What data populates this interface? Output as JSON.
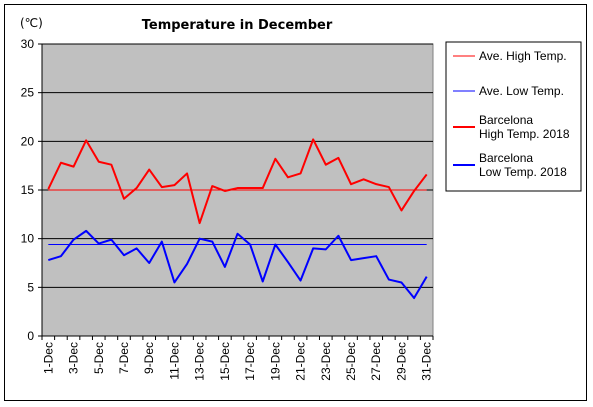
{
  "chart_data": {
    "type": "line",
    "title": "Temperature in December",
    "ylabel": "(℃)",
    "xlabel": "",
    "ylim": [
      0,
      30
    ],
    "yticks": [
      0,
      5,
      10,
      15,
      20,
      25,
      30
    ],
    "grid": true,
    "legend_position": "right",
    "categories": [
      "1-Dec",
      "2-Dec",
      "3-Dec",
      "4-Dec",
      "5-Dec",
      "6-Dec",
      "7-Dec",
      "8-Dec",
      "9-Dec",
      "10-Dec",
      "11-Dec",
      "12-Dec",
      "13-Dec",
      "14-Dec",
      "15-Dec",
      "16-Dec",
      "17-Dec",
      "18-Dec",
      "19-Dec",
      "20-Dec",
      "21-Dec",
      "22-Dec",
      "23-Dec",
      "24-Dec",
      "25-Dec",
      "26-Dec",
      "27-Dec",
      "28-Dec",
      "29-Dec",
      "30-Dec",
      "31-Dec"
    ],
    "tick_labels": [
      "1-Dec",
      "3-Dec",
      "5-Dec",
      "7-Dec",
      "9-Dec",
      "11-Dec",
      "13-Dec",
      "15-Dec",
      "17-Dec",
      "19-Dec",
      "21-Dec",
      "23-Dec",
      "25-Dec",
      "27-Dec",
      "29-Dec",
      "31-Dec"
    ],
    "series": [
      {
        "name": "Ave. High Temp.",
        "color": "#ff0000",
        "style": "thin",
        "values": [
          15,
          15,
          15,
          15,
          15,
          15,
          15,
          15,
          15,
          15,
          15,
          15,
          15,
          15,
          15,
          15,
          15,
          15,
          15,
          15,
          15,
          15,
          15,
          15,
          15,
          15,
          15,
          15,
          15,
          15,
          15
        ]
      },
      {
        "name": "Ave. Low Temp.",
        "color": "#0000ff",
        "style": "thin",
        "values": [
          9.4,
          9.4,
          9.4,
          9.4,
          9.4,
          9.4,
          9.4,
          9.4,
          9.4,
          9.4,
          9.4,
          9.4,
          9.4,
          9.4,
          9.4,
          9.4,
          9.4,
          9.4,
          9.4,
          9.4,
          9.4,
          9.4,
          9.4,
          9.4,
          9.4,
          9.4,
          9.4,
          9.4,
          9.4,
          9.4,
          9.4
        ]
      },
      {
        "name": "Barcelona High Temp. 2018",
        "name_lines": [
          "Barcelona",
          "High Temp. 2018"
        ],
        "color": "#ff0000",
        "style": "thick",
        "values": [
          15.1,
          17.8,
          17.4,
          20.1,
          17.9,
          17.6,
          14.1,
          15.2,
          17.1,
          15.3,
          15.5,
          16.7,
          11.6,
          15.4,
          14.9,
          15.2,
          15.2,
          15.2,
          18.2,
          16.3,
          16.7,
          20.2,
          17.6,
          18.3,
          15.6,
          16.1,
          15.6,
          15.3,
          12.9,
          14.9,
          16.6
        ]
      },
      {
        "name": "Barcelona Low Temp. 2018",
        "name_lines": [
          "Barcelona",
          "Low Temp. 2018"
        ],
        "color": "#0000ff",
        "style": "thick",
        "values": [
          7.8,
          8.2,
          9.9,
          10.8,
          9.5,
          9.9,
          8.3,
          9.0,
          7.5,
          9.7,
          5.5,
          7.4,
          10.0,
          9.7,
          7.1,
          10.5,
          9.4,
          5.6,
          9.4,
          7.6,
          5.7,
          9.0,
          8.9,
          10.3,
          7.8,
          8.0,
          8.2,
          5.8,
          5.5,
          3.9,
          6.1
        ]
      }
    ]
  }
}
